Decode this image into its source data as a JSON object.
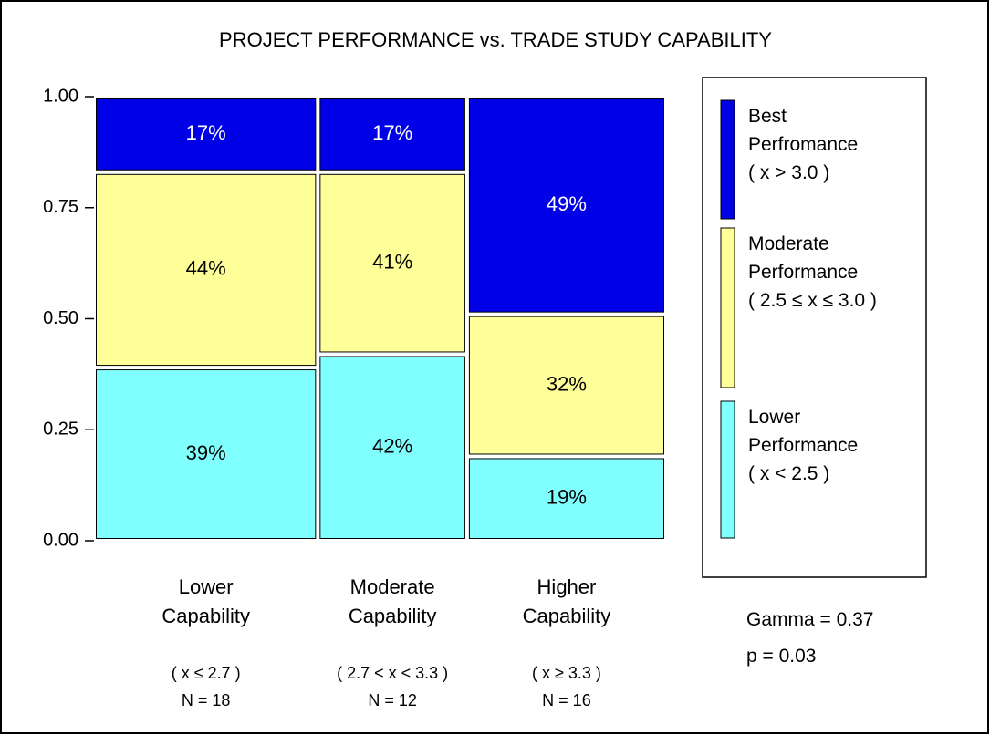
{
  "chart_data": {
    "type": "mosaic",
    "title": "PROJECT PERFORMANCE vs. TRADE STUDY CAPABILITY",
    "categories": [
      "Lower\nCapability",
      "Moderate\nCapability",
      "Higher\nCapability"
    ],
    "category_ranges": [
      "( x ≤ 2.7 )",
      "( 2.7 < x < 3.3 )",
      "( x ≥ 3.3 )"
    ],
    "n": [
      18,
      12,
      16
    ],
    "n_labels": [
      "N = 18",
      "N = 12",
      "N = 16"
    ],
    "series": [
      {
        "name": "Lower\nPerformance\n( x < 2.5 )",
        "color": "#80ffff",
        "values": [
          0.39,
          0.42,
          0.19
        ],
        "value_labels": [
          "39%",
          "42%",
          "19%"
        ]
      },
      {
        "name": "Moderate\nPerformance\n( 2.5 ≤ x ≤ 3.0 )",
        "color": "#ffff99",
        "values": [
          0.44,
          0.41,
          0.32
        ],
        "value_labels": [
          "44%",
          "41%",
          "32%"
        ]
      },
      {
        "name": "Best\nPerfromance\n( x > 3.0 )",
        "color": "#0000e6",
        "values": [
          0.17,
          0.17,
          0.49
        ],
        "value_labels": [
          "17%",
          "17%",
          "49%"
        ]
      }
    ],
    "ylim": [
      0,
      1
    ],
    "yticks": [
      {
        "value": 0,
        "label": "0.00"
      },
      {
        "value": 0.25,
        "label": "0.25"
      },
      {
        "value": 0.5,
        "label": "0.50"
      },
      {
        "value": 0.75,
        "label": "0.75"
      },
      {
        "value": 1,
        "label": "1.00"
      }
    ],
    "annotations": [
      "Gamma = 0.37",
      "p = 0.03"
    ]
  }
}
